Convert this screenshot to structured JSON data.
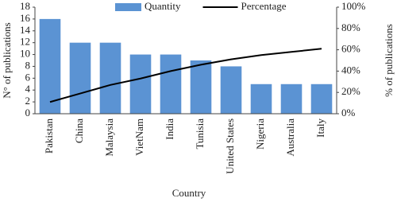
{
  "chart_data": {
    "type": "bar",
    "categories": [
      "Pakistan",
      "China",
      "Malaysia",
      "VietNam",
      "India",
      "Tunisia",
      "United States",
      "Nigeria",
      "Australia",
      "Italy"
    ],
    "series": [
      {
        "name": "Quantity",
        "color": "#5b93d3",
        "type": "bar",
        "values": [
          16,
          12,
          12,
          10,
          10,
          9,
          8,
          5,
          5,
          5
        ]
      },
      {
        "name": "Percentage",
        "color": "#000000",
        "type": "line",
        "axis": "y2",
        "values": [
          11,
          19,
          27,
          33,
          40,
          46,
          51,
          55,
          58,
          61
        ]
      }
    ],
    "x_label": "Country",
    "y_label": "N° of publications",
    "y2_label": "% of publications",
    "ylim": [
      0,
      18
    ],
    "yticks": [
      0,
      2,
      4,
      6,
      8,
      10,
      12,
      14,
      16,
      18
    ],
    "y2lim": [
      0,
      100
    ],
    "y2ticks": [
      {
        "value": 0,
        "label": "0%"
      },
      {
        "value": 20,
        "label": "20%"
      },
      {
        "value": 40,
        "label": "40%"
      },
      {
        "value": 60,
        "label": "60%"
      },
      {
        "value": 80,
        "label": "80%"
      },
      {
        "value": 100,
        "label": "100%"
      }
    ],
    "legend": "top"
  }
}
